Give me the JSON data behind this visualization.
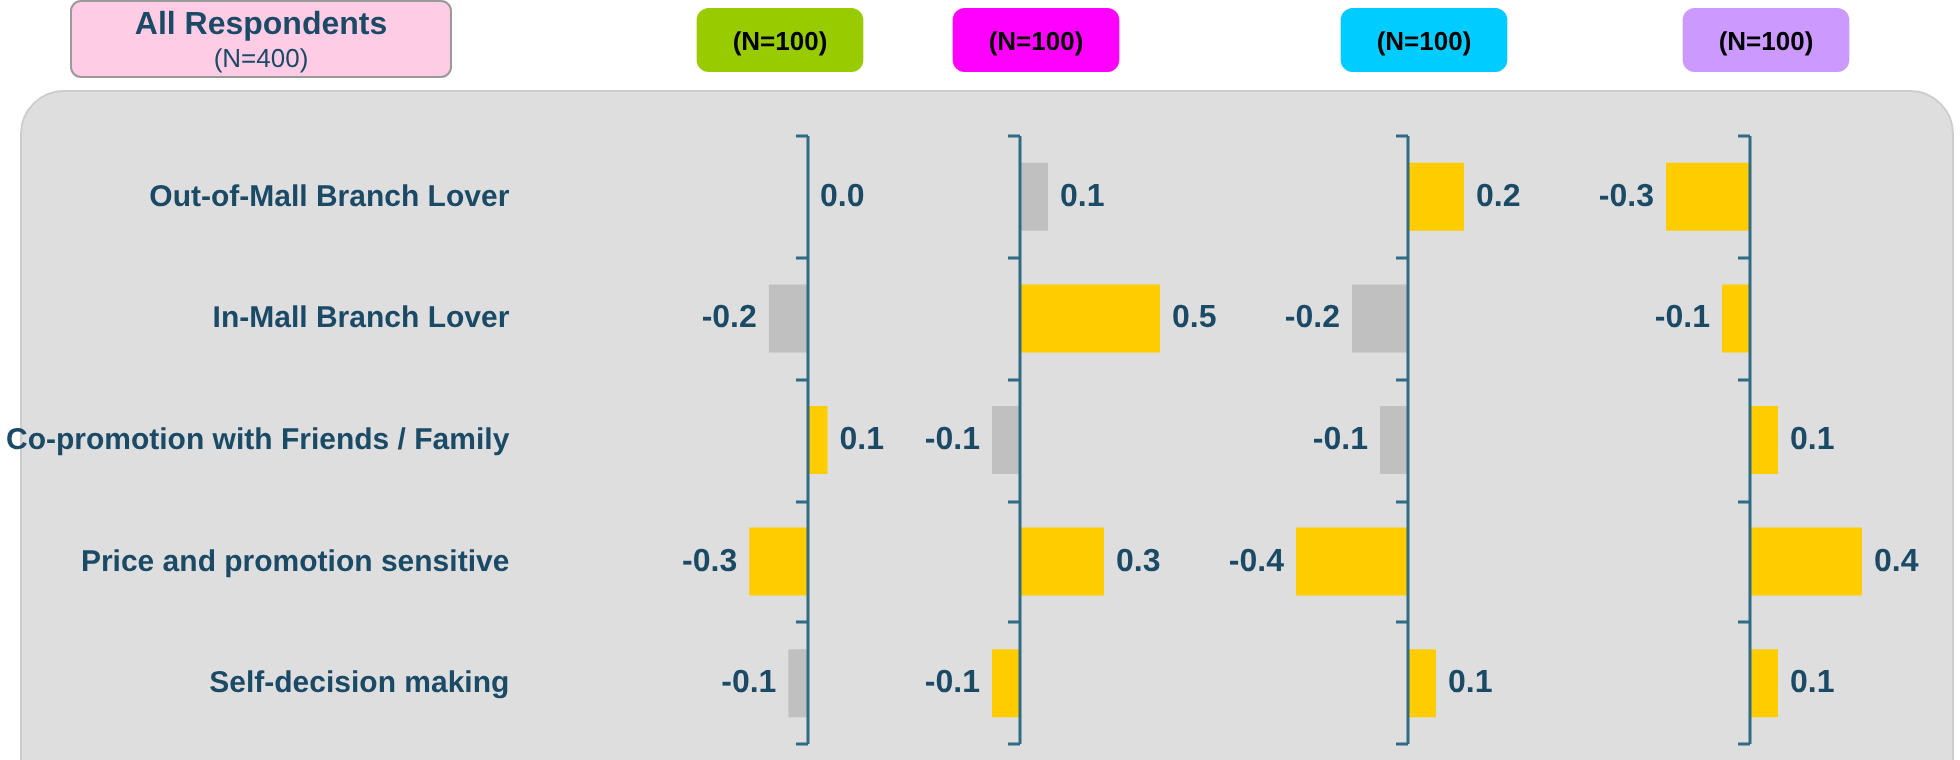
{
  "chart_data": [
    {
      "type": "bar",
      "orientation": "horizontal",
      "title": "(N=100)",
      "annotations": [
        "All Respondents",
        "(N=400)"
      ],
      "categories": [
        "Out-of-Mall Branch Lover",
        "In-Mall Branch Lover",
        "Co-promotion with Friends / Family",
        "Price and promotion sensitive",
        "Self-decision making"
      ],
      "values": [
        0.0,
        -0.2,
        0.1,
        -0.3,
        -0.1
      ],
      "value_labels": [
        "0.0",
        "-0.2",
        "0.1",
        "-0.3",
        "-0.1"
      ],
      "colors": [
        "#c0c0c0",
        "#c0c0c0",
        "#ffcc00",
        "#ffcc00",
        "#c0c0c0"
      ],
      "tick_labels": "y",
      "ref_lines": [
        {
          "axis": "x",
          "value": 0,
          "color": "#2e6b84"
        }
      ]
    },
    {
      "type": "bar",
      "orientation": "horizontal",
      "title": "(N=100)",
      "categories": [
        null,
        null,
        null,
        null,
        null
      ],
      "values": [
        0.1,
        0.5,
        -0.1,
        0.3,
        -0.1
      ],
      "value_labels": [
        "0.1",
        "0.5",
        "-0.1",
        "0.3",
        "-0.1"
      ],
      "colors": [
        "#c0c0c0",
        "#ffcc00",
        "#c0c0c0",
        "#ffcc00",
        "#ffcc00"
      ],
      "tick_labels": false,
      "ref_lines": [
        {
          "axis": "x",
          "value": 0,
          "color": "#2e6b84"
        }
      ]
    },
    {
      "type": "bar",
      "orientation": "horizontal",
      "title": "(N=100)",
      "categories": [
        null,
        null,
        null,
        null,
        null
      ],
      "values": [
        0.2,
        -0.2,
        -0.1,
        -0.4,
        0.1
      ],
      "value_labels": [
        "0.2",
        "-0.2",
        "-0.1",
        "-0.4",
        "0.1"
      ],
      "colors": [
        "#ffcc00",
        "#c0c0c0",
        "#c0c0c0",
        "#ffcc00",
        "#ffcc00"
      ],
      "tick_labels": false,
      "ref_lines": [
        {
          "axis": "x",
          "value": 0,
          "color": "#2e6b84"
        }
      ]
    },
    {
      "type": "bar",
      "orientation": "horizontal",
      "title": "(N=100)",
      "categories": [
        null,
        null,
        null,
        null,
        null
      ],
      "values": [
        -0.3,
        -0.1,
        0.1,
        0.4,
        0.1
      ],
      "value_labels": [
        "-0.3",
        "-0.1",
        "0.1",
        "0.4",
        "0.1"
      ],
      "colors": [
        "#ffcc00",
        "#ffcc00",
        "#ffcc00",
        "#ffcc00",
        "#ffcc00"
      ],
      "tick_labels": false,
      "ref_lines": [
        {
          "axis": "x",
          "value": 0,
          "color": "#2e6b84"
        }
      ]
    }
  ]
}
